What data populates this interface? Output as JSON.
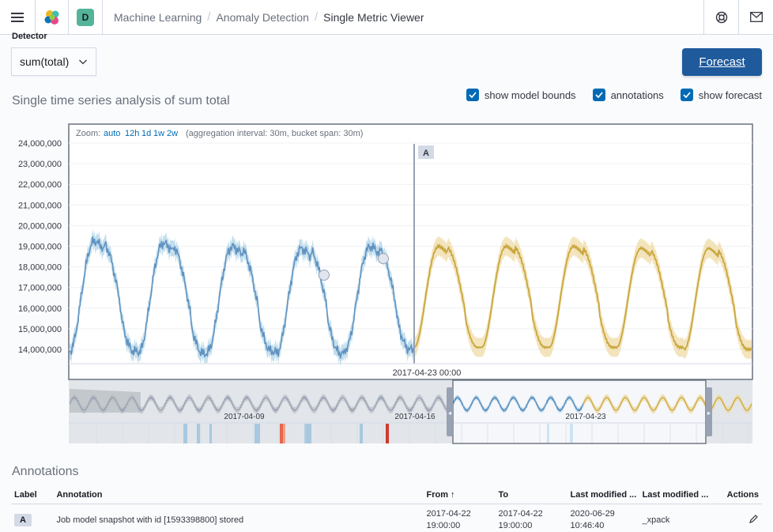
{
  "header": {
    "breadcrumbs": [
      "Machine Learning",
      "Anomaly Detection",
      "Single Metric Viewer"
    ],
    "space_initial": "D"
  },
  "detector": {
    "label": "Detector",
    "value": "sum(total)"
  },
  "forecast_button": "Forecast",
  "chart_title": "Single time series analysis of sum total",
  "options": [
    {
      "label": "show model bounds",
      "checked": true
    },
    {
      "label": "annotations",
      "checked": true
    },
    {
      "label": "show forecast",
      "checked": true
    }
  ],
  "zoom": {
    "label": "Zoom:",
    "options": [
      "auto",
      "12h",
      "1d",
      "1w",
      "2w"
    ],
    "info": "(aggregation interval: 30m, bucket span: 30m)"
  },
  "annotation_marker": "A",
  "chart_data": {
    "type": "line",
    "y_ticks": [
      "24,000,000",
      "23,000,000",
      "22,000,000",
      "21,000,000",
      "20,000,000",
      "19,000,000",
      "18,000,000",
      "17,000,000",
      "16,000,000",
      "15,000,000",
      "14,000,000"
    ],
    "ylim": [
      13300000,
      24500000
    ],
    "x_tick": "2017-04-23 00:00",
    "series": [
      {
        "name": "actual",
        "color": "#6092c0",
        "peaks": [
          19800000,
          19700000,
          19500000,
          19400000,
          19500000
        ],
        "troughs": [
          13900000,
          13800000,
          13900000,
          13800000,
          14000000
        ]
      },
      {
        "name": "forecast",
        "color": "#d6bf57",
        "peaks": [
          19500000,
          19500000,
          19500000,
          19400000,
          19400000
        ],
        "troughs": [
          14100000,
          14100000,
          14100000,
          14100000,
          14000000
        ]
      }
    ],
    "anomalies": [
      17600000,
      18400000
    ],
    "overview_ticks": [
      "2017-04-09",
      "2017-04-16",
      "2017-04-23"
    ]
  },
  "annotations": {
    "title": "Annotations",
    "columns": [
      "Label",
      "Annotation",
      "From",
      "To",
      "Last modified ...",
      "Last modified ...",
      "Actions"
    ],
    "rows": [
      {
        "label": "A",
        "annotation": "Job model snapshot with id [1593398800] stored",
        "from_date": "2017-04-22",
        "from_time": "19:00:00",
        "to_date": "2017-04-22",
        "to_time": "19:00:00",
        "last_modified_date": "2020-06-29",
        "last_modified_time": "10:46:40",
        "last_modified_by": "_xpack"
      }
    ]
  }
}
